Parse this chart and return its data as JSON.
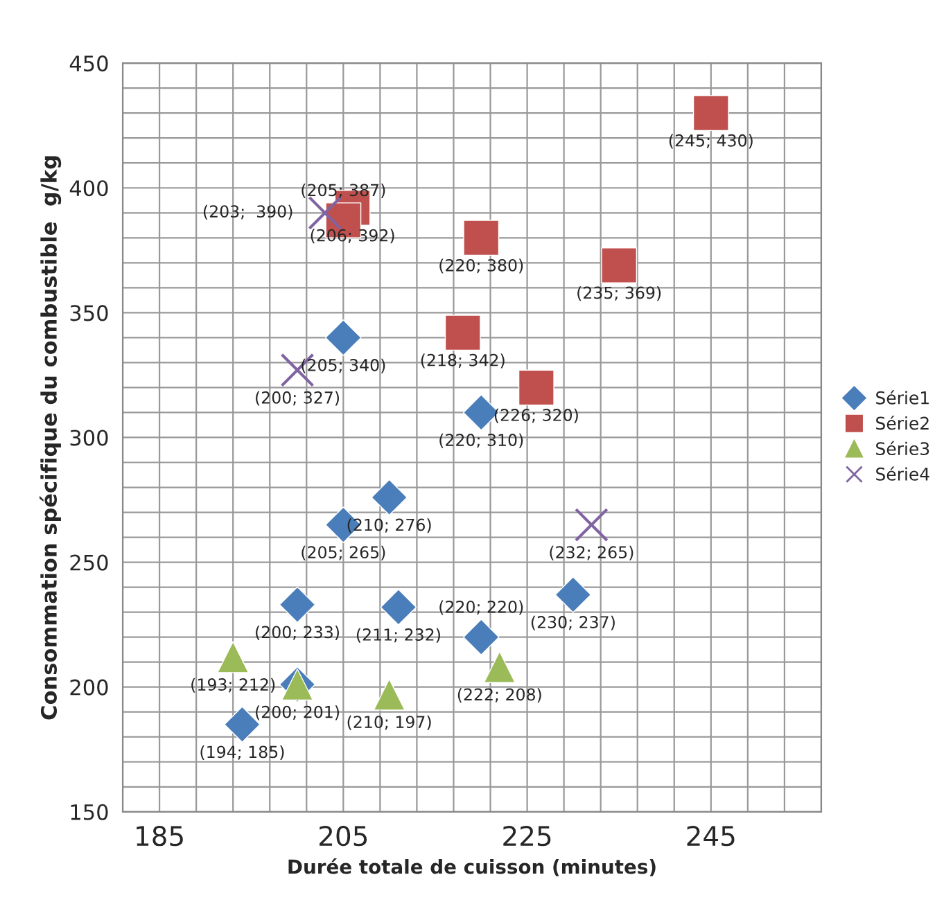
{
  "chart_data": {
    "type": "scatter",
    "xlabel": "Durée totale de cuisson (minutes)",
    "ylabel": "Consommation spécifique du combustible  g/kg",
    "xlim": [
      181,
      257
    ],
    "xticks": [
      {
        "value": 181,
        "label": null
      },
      185,
      {
        "value": 189,
        "label": null
      },
      {
        "value": 193,
        "label": null
      },
      {
        "value": 197,
        "label": null
      },
      {
        "value": 201,
        "label": null
      },
      205,
      {
        "value": 209,
        "label": null
      },
      {
        "value": 213,
        "label": null
      },
      {
        "value": 217,
        "label": null
      },
      {
        "value": 221,
        "label": null
      },
      225,
      {
        "value": 229,
        "label": null
      },
      {
        "value": 233,
        "label": null
      },
      {
        "value": 237,
        "label": null
      },
      {
        "value": 241,
        "label": null
      },
      245,
      {
        "value": 249,
        "label": null
      },
      {
        "value": 253,
        "label": null
      },
      {
        "value": 257,
        "label": null
      }
    ],
    "ylim": [
      150,
      450
    ],
    "yticks": [
      150,
      {
        "value": 160,
        "label": null
      },
      {
        "value": 170,
        "label": null
      },
      {
        "value": 180,
        "label": null
      },
      {
        "value": 190,
        "label": null
      },
      200,
      {
        "value": 210,
        "label": null
      },
      {
        "value": 220,
        "label": null
      },
      {
        "value": 230,
        "label": null
      },
      {
        "value": 240,
        "label": null
      },
      250,
      {
        "value": 260,
        "label": null
      },
      {
        "value": 270,
        "label": null
      },
      {
        "value": 280,
        "label": null
      },
      {
        "value": 290,
        "label": null
      },
      300,
      {
        "value": 310,
        "label": null
      },
      {
        "value": 320,
        "label": null
      },
      {
        "value": 330,
        "label": null
      },
      {
        "value": 340,
        "label": null
      },
      350,
      {
        "value": 360,
        "label": null
      },
      {
        "value": 370,
        "label": null
      },
      {
        "value": 380,
        "label": null
      },
      {
        "value": 390,
        "label": null
      },
      400,
      {
        "value": 410,
        "label": null
      },
      {
        "value": 420,
        "label": null
      },
      {
        "value": 430,
        "label": null
      },
      {
        "value": 440,
        "label": null
      },
      450
    ],
    "grid": true,
    "legend": "right",
    "series": [
      {
        "name": "Série1",
        "color": "#4a7ebb",
        "marker": "diamond",
        "x": [
          194,
          200,
          200,
          205,
          205,
          210,
          211,
          220,
          220,
          230
        ],
        "values": [
          185,
          233,
          201,
          265,
          340,
          276,
          232,
          310,
          220,
          237
        ],
        "value_labels": [
          "(194; 185)",
          "(200; 233)",
          "(200; 201)",
          "(205; 265)",
          "(205; 340)",
          "(210; 276)",
          "(211; 232)",
          "(220; 310)",
          "(220; 220)",
          "(230; 237)"
        ]
      },
      {
        "name": "Série2",
        "color": "#c0504d",
        "marker": "square",
        "x": [
          206,
          205,
          220,
          235,
          218,
          226,
          245
        ],
        "values": [
          392,
          387,
          380,
          369,
          342,
          320,
          430
        ],
        "value_labels": [
          "(206; 392)",
          "(205; 387)",
          "(220; 380)",
          "(235; 369)",
          "(218; 342)",
          "(226; 320)",
          "(245; 430)"
        ]
      },
      {
        "name": "Série3",
        "color": "#9bbb59",
        "marker": "triangle",
        "x": [
          193,
          200,
          210,
          222
        ],
        "values": [
          212,
          201,
          197,
          208
        ],
        "value_labels": [
          "(193; 212)",
          null,
          "(210; 197)",
          "(222; 208)"
        ]
      },
      {
        "name": "Série4",
        "color": "#8064a2",
        "marker": "cross",
        "x": [
          203,
          200,
          232
        ],
        "values": [
          390,
          327,
          265
        ],
        "value_labels": [
          "(203;  390)",
          "(200; 327)",
          "(232; 265)"
        ]
      }
    ]
  }
}
